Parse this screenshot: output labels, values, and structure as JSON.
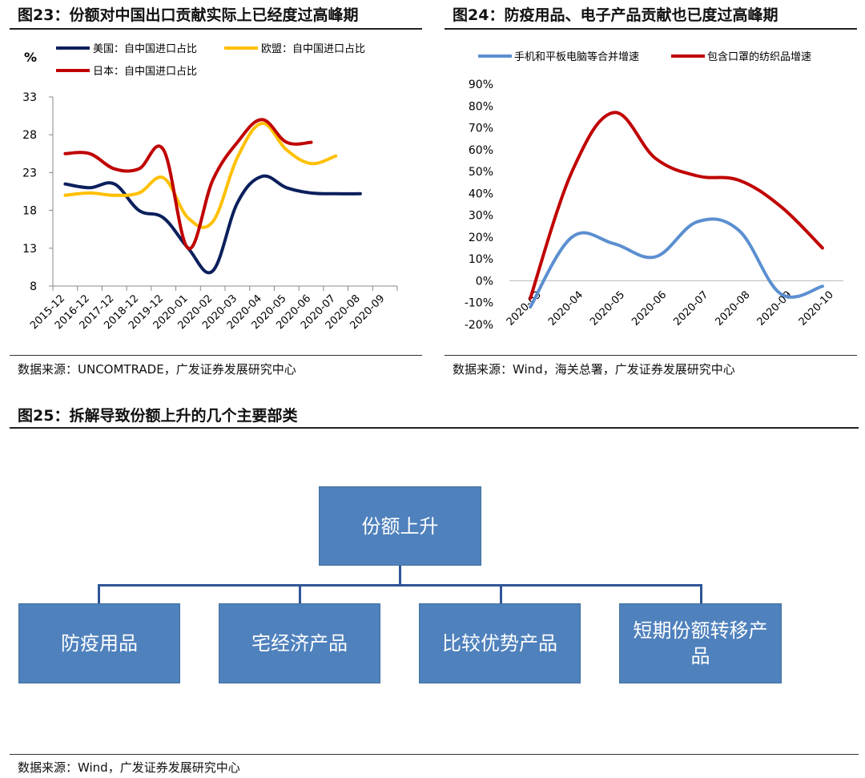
{
  "fig23": {
    "title": "图23：份额对中国出口贡献实际上已经度过高峰期",
    "source": "数据来源：UNCOMTRADE，广发证券发展研究中心"
  },
  "fig24": {
    "title": "图24：防疫用品、电子产品贡献也已度过高峰期",
    "source": "数据来源：Wind，海关总署，广发证券发展研究中心"
  },
  "fig25": {
    "title": "图25：拆解导致份额上升的几个主要部类",
    "source": "数据来源：Wind，广发证券发展研究中心",
    "root": "份额上升",
    "children": [
      "防疫用品",
      "宅经济产品",
      "比较优势产品",
      "短期份额转移产品"
    ]
  },
  "chart_data": [
    {
      "type": "line",
      "ylabel": "%",
      "categories": [
        "2015-12",
        "2016-12",
        "2017-12",
        "2018-12",
        "2019-12",
        "2020-01",
        "2020-02",
        "2020-03",
        "2020-04",
        "2020-05",
        "2020-06",
        "2020-07",
        "2020-08",
        "2020-09"
      ],
      "y_ticks": [
        "8",
        "13",
        "18",
        "23",
        "28",
        "33"
      ],
      "ylim": [
        8,
        33
      ],
      "grid": false,
      "legend": "top-left",
      "series": [
        {
          "name": "美国：自中国进口占比",
          "color": "#0B1F5C",
          "values": [
            21.5,
            21,
            21.5,
            18,
            17,
            13,
            10,
            19,
            22.5,
            21,
            20.3,
            20.2,
            20.2,
            null
          ]
        },
        {
          "name": "欧盟：自中国进口占比",
          "color": "#FFC000",
          "values": [
            20,
            20.3,
            20,
            20.3,
            22.3,
            17,
            16.5,
            25,
            29.5,
            26,
            24.2,
            25.2,
            null,
            null
          ]
        },
        {
          "name": "日本：自中国进口占比",
          "color": "#C00000",
          "values": [
            25.5,
            25.5,
            23.5,
            23.5,
            26,
            13,
            22,
            27,
            30,
            27,
            27,
            null,
            null,
            null
          ]
        }
      ]
    },
    {
      "type": "line",
      "categories": [
        "2020-03",
        "2020-04",
        "2020-05",
        "2020-06",
        "2020-07",
        "2020-08",
        "2020-09",
        "2020-10"
      ],
      "y_ticks": [
        "-20%",
        "-10%",
        "0%",
        "10%",
        "20%",
        "30%",
        "40%",
        "50%",
        "60%",
        "70%",
        "80%",
        "90%"
      ],
      "ylim": [
        -20,
        90
      ],
      "grid": false,
      "legend": "top",
      "series": [
        {
          "name": "手机和平板电脑等合并增速",
          "color": "#5B8FD0",
          "values": [
            -12,
            20,
            17,
            11,
            27,
            23,
            -6,
            -2.5
          ]
        },
        {
          "name": "包含口罩的纺织品增速",
          "color": "#C00000",
          "values": [
            -8,
            50,
            77,
            56,
            48,
            46,
            34,
            15
          ]
        }
      ]
    }
  ]
}
